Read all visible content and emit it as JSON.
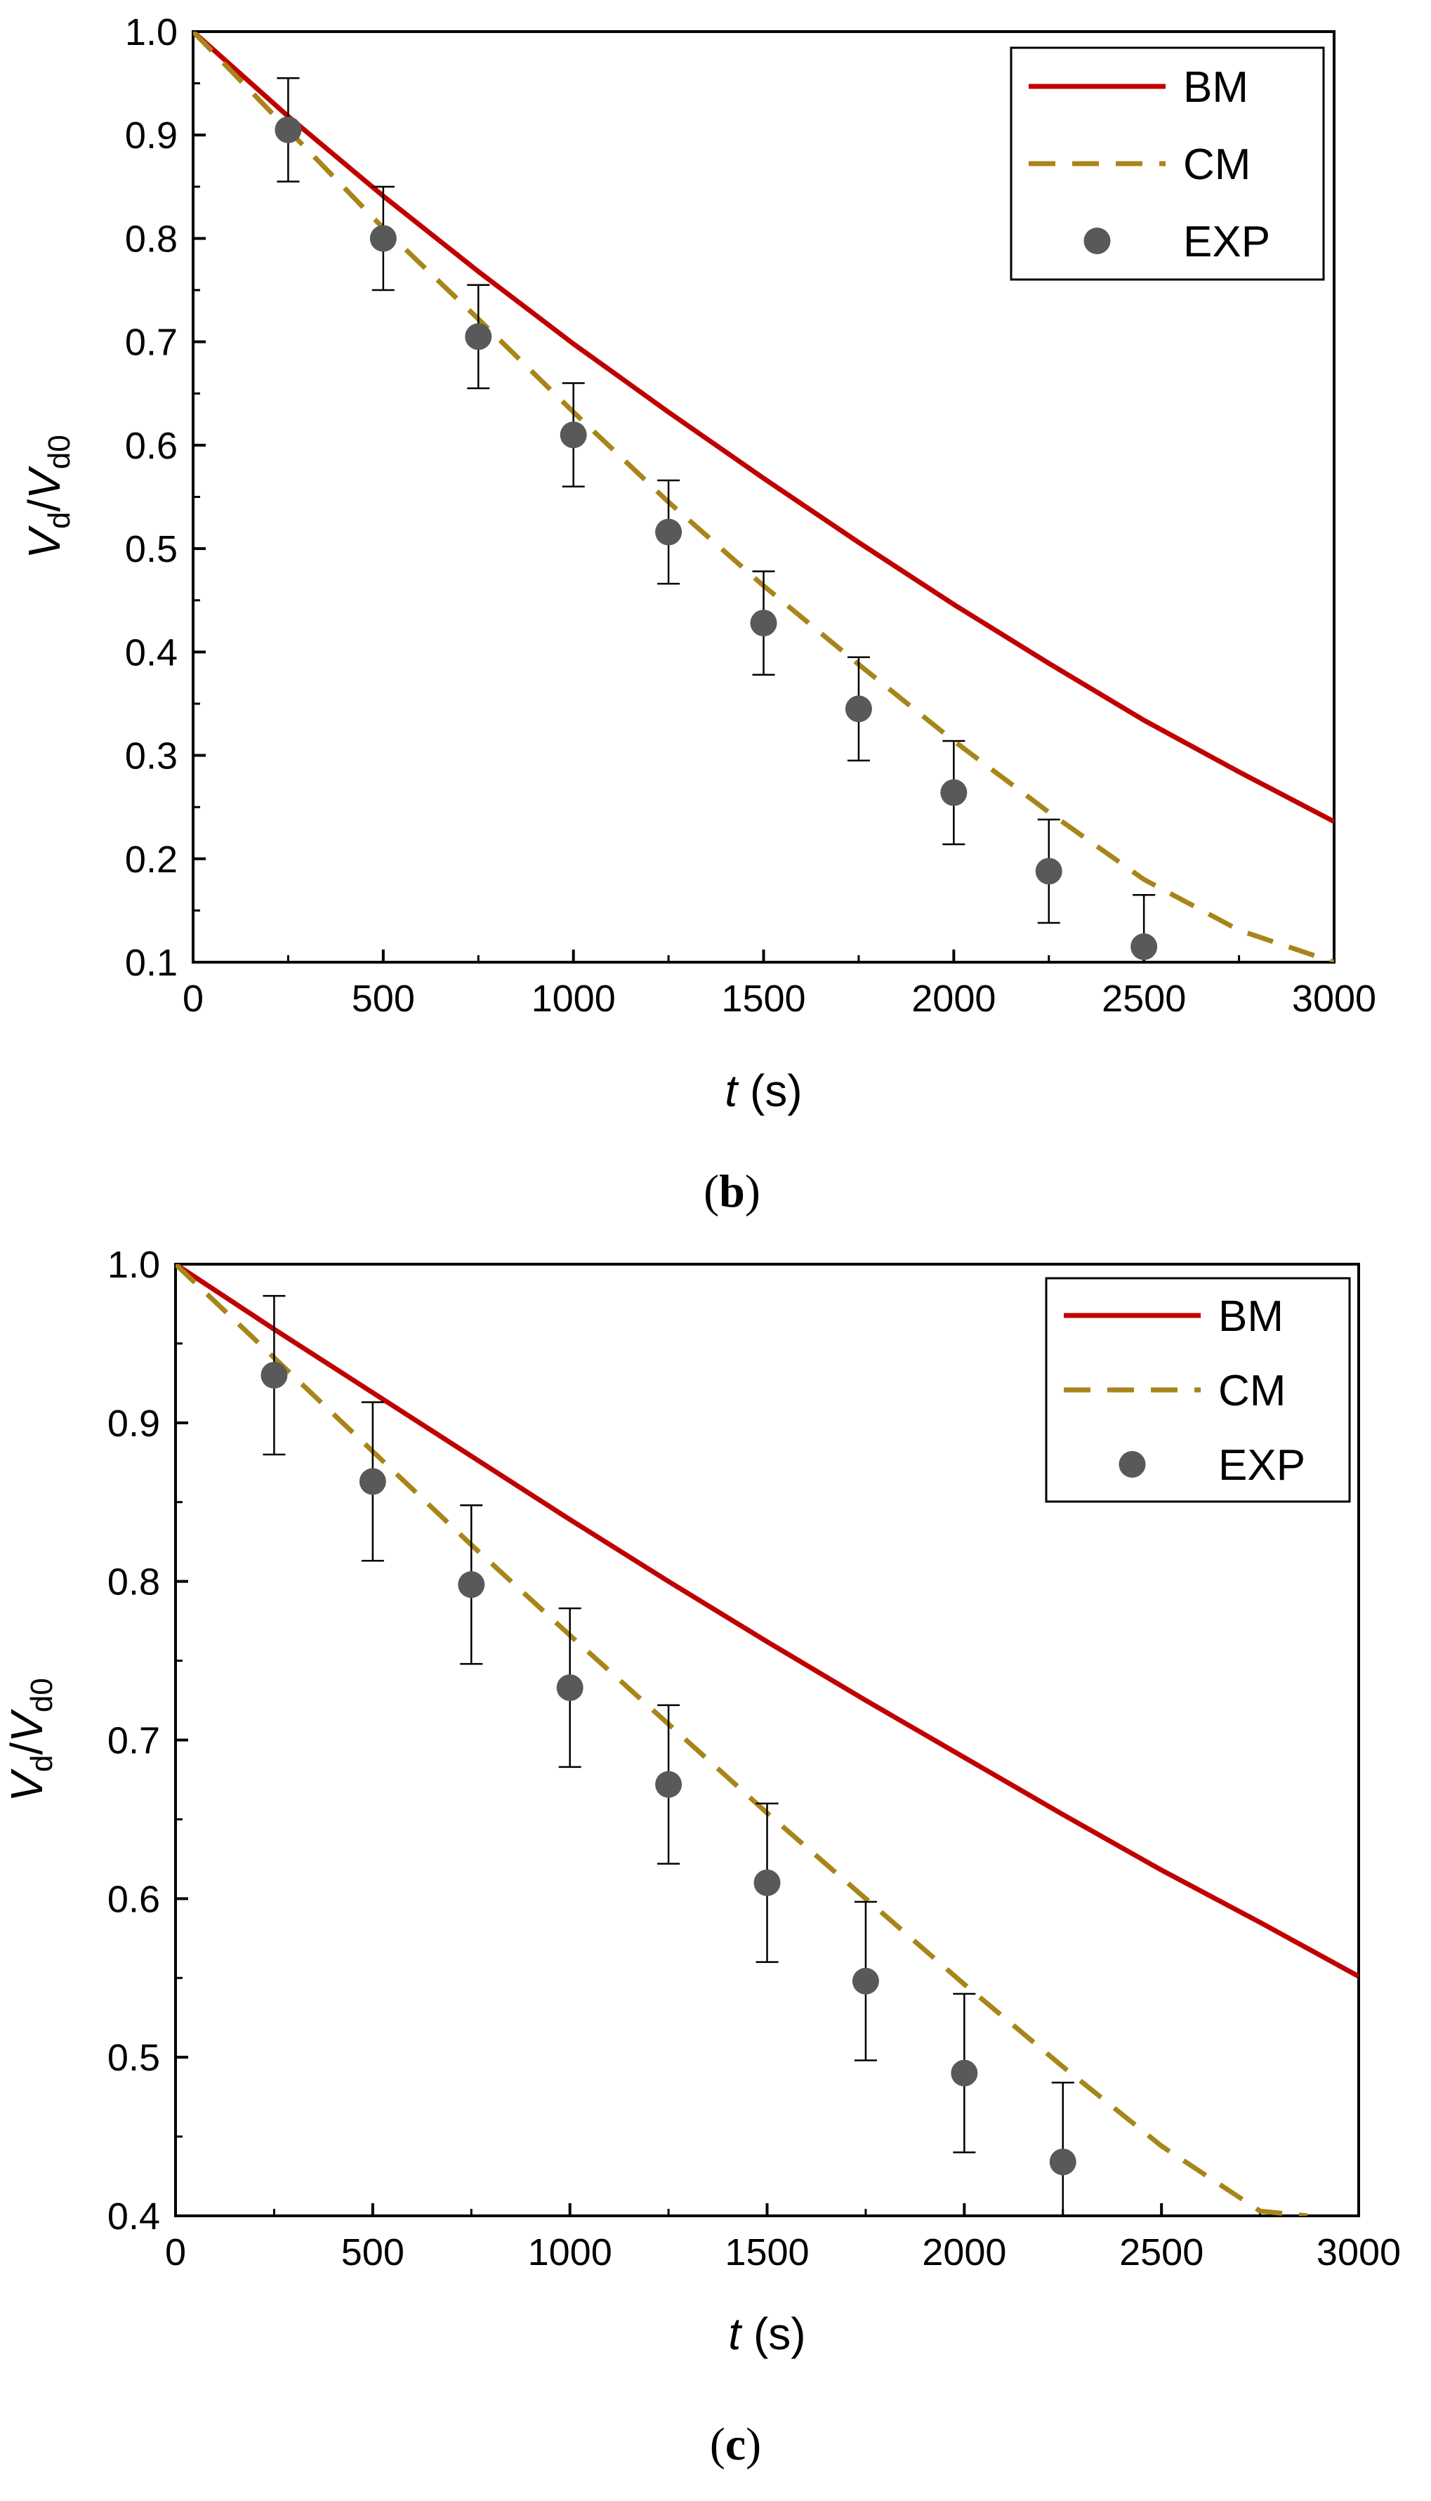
{
  "chart_data": [
    {
      "type": "line",
      "panel_label": {
        "open": "(",
        "letter": "b",
        "close": ")"
      },
      "xlabel": {
        "var": "t",
        "unit": " (s)"
      },
      "ylabel": {
        "v1": "V",
        "s1": "d",
        "slash": "/",
        "v2": "V",
        "s2": "d0"
      },
      "xlim": [
        0,
        3000
      ],
      "ylim": [
        0.1,
        1.0
      ],
      "x_ticks": [
        0,
        500,
        1000,
        1500,
        2000,
        2500,
        3000
      ],
      "x_tick_labels": [
        "0",
        "500",
        "1000",
        "1500",
        "2000",
        "2500",
        "3000"
      ],
      "y_ticks": [
        0.1,
        0.2,
        0.3,
        0.4,
        0.5,
        0.6,
        0.7,
        0.8,
        0.9,
        1.0
      ],
      "y_tick_labels": [
        "0.1",
        "0.2",
        "0.3",
        "0.4",
        "0.5",
        "0.6",
        "0.7",
        "0.8",
        "0.9",
        "1.0"
      ],
      "legend_position": "top-right",
      "series": [
        {
          "name": "BM",
          "style": "solid-line",
          "color": "#c00000",
          "x": [
            0,
            250,
            500,
            750,
            1000,
            1250,
            1500,
            1750,
            2000,
            2250,
            2500,
            2750,
            3000
          ],
          "y": [
            1.0,
            0.918,
            0.841,
            0.768,
            0.698,
            0.632,
            0.568,
            0.506,
            0.446,
            0.389,
            0.334,
            0.284,
            0.236
          ]
        },
        {
          "name": "CM",
          "style": "dashed-line",
          "color": "#a88518",
          "x": [
            0,
            250,
            500,
            750,
            1000,
            1250,
            1500,
            1750,
            2000,
            2250,
            2500,
            2750,
            3000
          ],
          "y": [
            1.0,
            0.905,
            0.81,
            0.722,
            0.632,
            0.545,
            0.464,
            0.388,
            0.314,
            0.245,
            0.18,
            0.131,
            0.1
          ]
        },
        {
          "name": "EXP",
          "style": "marker-errorbar",
          "color": "#595959",
          "x": [
            250,
            500,
            750,
            1000,
            1250,
            1500,
            1750,
            2000,
            2250,
            2500
          ],
          "y": [
            0.905,
            0.8,
            0.705,
            0.61,
            0.516,
            0.428,
            0.345,
            0.264,
            0.188,
            0.115
          ],
          "error": [
            0.05,
            0.05,
            0.05,
            0.05,
            0.05,
            0.05,
            0.05,
            0.05,
            0.05,
            0.05
          ]
        }
      ]
    },
    {
      "type": "line",
      "panel_label": {
        "open": "(",
        "letter": "c",
        "close": ")"
      },
      "xlabel": {
        "var": "t",
        "unit": " (s)"
      },
      "ylabel": {
        "v1": "V",
        "s1": "d",
        "slash": "/",
        "v2": "V",
        "s2": "d0"
      },
      "xlim": [
        0,
        3000
      ],
      "ylim": [
        0.4,
        1.0
      ],
      "x_ticks": [
        0,
        500,
        1000,
        1500,
        2000,
        2500,
        3000
      ],
      "x_tick_labels": [
        "0",
        "500",
        "1000",
        "1500",
        "2000",
        "2500",
        "3000"
      ],
      "y_ticks": [
        0.4,
        0.5,
        0.6,
        0.7,
        0.8,
        0.9,
        1.0
      ],
      "y_tick_labels": [
        "0.4",
        "0.5",
        "0.6",
        "0.7",
        "0.8",
        "0.9",
        "1.0"
      ],
      "legend_position": "top-right",
      "series": [
        {
          "name": "BM",
          "style": "solid-line",
          "color": "#c00000",
          "x": [
            0,
            250,
            500,
            750,
            1000,
            1250,
            1500,
            1750,
            2000,
            2250,
            2500,
            2750,
            3000
          ],
          "y": [
            1.0,
            0.959,
            0.919,
            0.879,
            0.839,
            0.8,
            0.762,
            0.725,
            0.689,
            0.653,
            0.618,
            0.585,
            0.551
          ]
        },
        {
          "name": "CM",
          "style": "dashed-line",
          "color": "#a88518",
          "x": [
            0,
            250,
            500,
            750,
            1000,
            1250,
            1500,
            1750,
            2000,
            2250,
            2500,
            2750,
            2870
          ],
          "y": [
            1.0,
            0.941,
            0.882,
            0.823,
            0.766,
            0.71,
            0.654,
            0.6,
            0.546,
            0.494,
            0.444,
            0.403,
            0.4
          ]
        },
        {
          "name": "EXP",
          "style": "marker-errorbar",
          "color": "#595959",
          "x": [
            250,
            500,
            750,
            1000,
            1250,
            1500,
            1750,
            2000,
            2250
          ],
          "y": [
            0.93,
            0.863,
            0.798,
            0.733,
            0.672,
            0.61,
            0.548,
            0.49,
            0.434
          ],
          "error": [
            0.05,
            0.05,
            0.05,
            0.05,
            0.05,
            0.05,
            0.05,
            0.05,
            0.05
          ]
        }
      ]
    }
  ]
}
